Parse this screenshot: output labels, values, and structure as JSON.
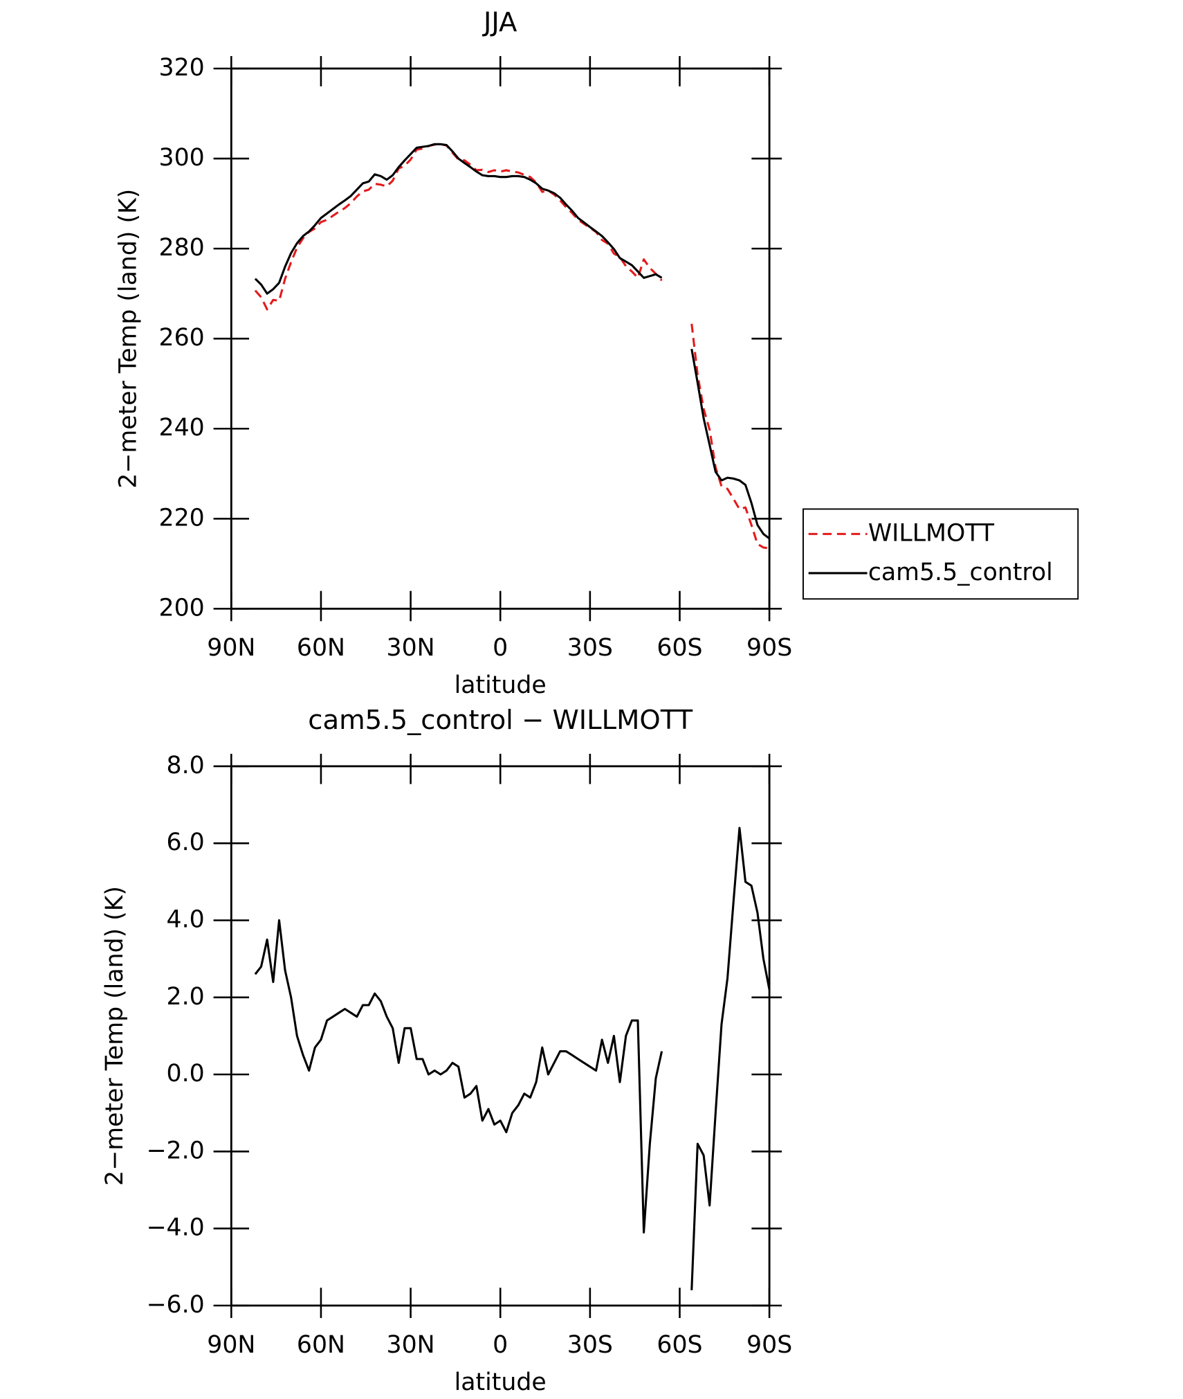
{
  "chart_data": [
    {
      "type": "line",
      "title": "JJA",
      "ylabel": "2−meter Temp (land) (K)",
      "xlabel": "latitude",
      "xlim": [
        90,
        -90
      ],
      "xticks": [
        {
          "value": 90,
          "label": "90N"
        },
        {
          "value": 60,
          "label": "60N"
        },
        {
          "value": 30,
          "label": "30N"
        },
        0,
        {
          "value": -30,
          "label": "30S"
        },
        {
          "value": -60,
          "label": "60S"
        },
        {
          "value": -90,
          "label": "90S"
        }
      ],
      "ylim": [
        200,
        320
      ],
      "yticks": [
        200,
        220,
        240,
        260,
        280,
        300,
        320
      ],
      "legend": "outside right",
      "x": [
        82,
        80,
        78,
        76,
        74,
        72,
        70,
        68,
        66,
        64,
        62,
        60,
        58,
        56,
        54,
        52,
        50,
        48,
        46,
        44,
        42,
        40,
        38,
        36,
        34,
        32,
        30,
        28,
        26,
        24,
        22,
        20,
        18,
        16,
        14,
        12,
        10,
        8,
        6,
        4,
        2,
        0,
        -2,
        -4,
        -6,
        -8,
        -10,
        -12,
        -14,
        -16,
        -18,
        -20,
        -22,
        -24,
        -26,
        -28,
        -30,
        -32,
        -34,
        -36,
        -38,
        -40,
        -42,
        -44,
        -46,
        -48,
        -50,
        -52,
        -54,
        -56,
        -58,
        -60,
        -62,
        -64,
        -66,
        -68,
        -70,
        -72,
        -74,
        -76,
        -78,
        -80,
        -82,
        -84,
        -86,
        -88,
        -90
      ],
      "series": [
        {
          "name": "WILLMOTT",
          "color": "#e41a1c",
          "dash": true,
          "values": [
            270.7,
            269.2,
            266.5,
            268.6,
            268.4,
            273.3,
            277,
            280.2,
            282.3,
            283.7,
            284.5,
            285.9,
            286.4,
            287.3,
            288.2,
            289.0,
            290.1,
            291.6,
            292.7,
            293.1,
            294.4,
            294.2,
            293.8,
            295.1,
            297.8,
            298.4,
            299.8,
            302.0,
            302.2,
            302.8,
            303.1,
            303.2,
            302.9,
            301.3,
            299.8,
            299.6,
            298.6,
            297.4,
            297.5,
            297.0,
            297.4,
            297.1,
            297.4,
            297.1,
            296.9,
            296.4,
            295.9,
            294.7,
            292.6,
            292.9,
            292.0,
            290.7,
            289.2,
            287.9,
            286.4,
            285.5,
            284.6,
            283.7,
            281.9,
            281.1,
            278.9,
            278.1,
            276.1,
            274.9,
            273.5,
            277.6,
            275.7,
            274.4,
            272.9,
            null,
            null,
            null,
            null,
            263.3,
            252.0,
            244.4,
            239.8,
            231.4,
            227.2,
            226.6,
            224.4,
            222.1,
            222.5,
            218.6,
            214.4,
            213.6,
            213.4
          ]
        },
        {
          "name": "cam5.5_control",
          "color": "#000000",
          "dash": false,
          "values": [
            273.3,
            272,
            270,
            271,
            272.4,
            276,
            279,
            281.2,
            282.8,
            283.8,
            285.2,
            286.8,
            287.8,
            288.8,
            289.8,
            290.7,
            291.7,
            293.1,
            294.5,
            294.9,
            296.5,
            296.1,
            295.3,
            296.3,
            298.1,
            299.6,
            301,
            302.4,
            302.6,
            302.8,
            303.2,
            303.2,
            303,
            301.6,
            300,
            299,
            298.1,
            297.1,
            296.3,
            296.1,
            296.1,
            295.9,
            295.9,
            296.1,
            296.1,
            295.9,
            295.3,
            294.5,
            293.3,
            292.9,
            292.3,
            291.3,
            289.8,
            288.4,
            286.8,
            285.8,
            284.8,
            283.8,
            282.8,
            281.4,
            279.9,
            277.9,
            277.1,
            276.3,
            274.9,
            273.5,
            273.9,
            274.3,
            273.5,
            null,
            null,
            null,
            null,
            257.7,
            250.2,
            242.3,
            236.4,
            230.4,
            228.5,
            229.1,
            228.9,
            228.5,
            227.5,
            223.5,
            218.6,
            216.6,
            215.6
          ]
        }
      ]
    },
    {
      "type": "line",
      "title": "cam5.5_control − WILLMOTT",
      "ylabel": "2−meter Temp (land) (K)",
      "xlabel": "latitude",
      "xlim": [
        90,
        -90
      ],
      "xticks": [
        {
          "value": 90,
          "label": "90N"
        },
        {
          "value": 60,
          "label": "60N"
        },
        {
          "value": 30,
          "label": "30N"
        },
        0,
        {
          "value": -30,
          "label": "30S"
        },
        {
          "value": -60,
          "label": "60S"
        },
        {
          "value": -90,
          "label": "90S"
        }
      ],
      "ylim": [
        -6,
        8
      ],
      "yticks": [
        {
          "value": -6,
          "label": "−6.0"
        },
        {
          "value": -4,
          "label": "−4.0"
        },
        {
          "value": -2,
          "label": "−2.0"
        },
        {
          "value": 0,
          "label": "0.0"
        },
        {
          "value": 2,
          "label": "2.0"
        },
        {
          "value": 4,
          "label": "4.0"
        },
        {
          "value": 6,
          "label": "6.0"
        },
        {
          "value": 8,
          "label": "8.0"
        }
      ],
      "x": [
        82,
        80,
        78,
        76,
        74,
        72,
        70,
        68,
        66,
        64,
        62,
        60,
        58,
        56,
        54,
        52,
        50,
        48,
        46,
        44,
        42,
        40,
        38,
        36,
        34,
        32,
        30,
        28,
        26,
        24,
        22,
        20,
        18,
        16,
        14,
        12,
        10,
        8,
        6,
        4,
        2,
        0,
        -2,
        -4,
        -6,
        -8,
        -10,
        -12,
        -14,
        -16,
        -18,
        -20,
        -22,
        -24,
        -26,
        -28,
        -30,
        -32,
        -34,
        -36,
        -38,
        -40,
        -42,
        -44,
        -46,
        -48,
        -50,
        -52,
        -54,
        -56,
        -58,
        -60,
        -62,
        -64,
        -66,
        -68,
        -70,
        -72,
        -74,
        -76,
        -78,
        -80,
        -82,
        -84,
        -86,
        -88,
        -90
      ],
      "series": [
        {
          "color": "#000000",
          "dash": false,
          "values": [
            2.6,
            2.8,
            3.5,
            2.4,
            4.0,
            2.7,
            2.0,
            1.0,
            0.5,
            0.1,
            0.7,
            0.9,
            1.4,
            1.5,
            1.6,
            1.7,
            1.6,
            1.5,
            1.8,
            1.8,
            2.1,
            1.9,
            1.5,
            1.2,
            0.3,
            1.2,
            1.2,
            0.4,
            0.4,
            0.0,
            0.1,
            0.0,
            0.1,
            0.3,
            0.2,
            -0.6,
            -0.5,
            -0.3,
            -1.2,
            -0.9,
            -1.3,
            -1.2,
            -1.5,
            -1.0,
            -0.8,
            -0.5,
            -0.6,
            -0.2,
            0.7,
            0.0,
            0.3,
            0.6,
            0.6,
            0.5,
            0.4,
            0.3,
            0.2,
            0.1,
            0.9,
            0.3,
            1.0,
            -0.2,
            1.0,
            1.4,
            1.4,
            -4.1,
            -1.8,
            -0.1,
            0.6,
            null,
            null,
            null,
            null,
            -5.6,
            -1.8,
            -2.1,
            -3.4,
            -1.0,
            1.3,
            2.5,
            4.5,
            6.4,
            5.0,
            4.9,
            4.2,
            3.0,
            2.2
          ]
        }
      ]
    }
  ]
}
